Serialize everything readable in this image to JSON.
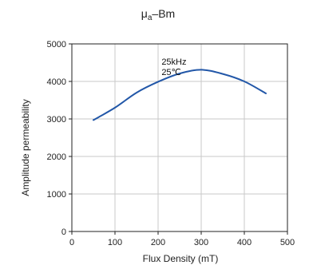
{
  "chart_data": {
    "type": "line",
    "title": {
      "main": "μ",
      "sub": "a",
      "rest": "–Bm"
    },
    "xlabel": "Flux Density (mT)",
    "ylabel": "Amplitude permeability",
    "xlim": [
      0,
      500
    ],
    "ylim": [
      0,
      5000
    ],
    "xticks": [
      0,
      100,
      200,
      300,
      400,
      500
    ],
    "yticks": [
      0,
      1000,
      2000,
      3000,
      4000,
      5000
    ],
    "grid": true,
    "series": [
      {
        "color": "#2257a8",
        "x": [
          50,
          100,
          150,
          200,
          250,
          300,
          350,
          400,
          450
        ],
        "y": [
          2970,
          3300,
          3700,
          3990,
          4210,
          4310,
          4200,
          4000,
          3680
        ]
      }
    ],
    "annotations": [
      {
        "line1": "25kHz",
        "line2": "25℃",
        "x": 208,
        "y": 4450
      }
    ]
  }
}
